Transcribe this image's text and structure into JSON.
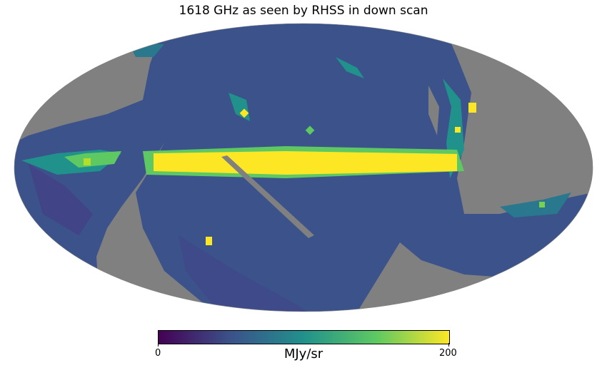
{
  "title": "1618 GHz as seen by RHSS in down scan",
  "map": {
    "projection": "mollweide",
    "missing_color": "#808080",
    "colormap": "viridis",
    "colormap_stops": [
      "#440154",
      "#3b528b",
      "#21918c",
      "#5ec962",
      "#fde725"
    ]
  },
  "colorbar": {
    "min_label": "0",
    "max_label": "200",
    "unit": "MJy/sr"
  }
}
